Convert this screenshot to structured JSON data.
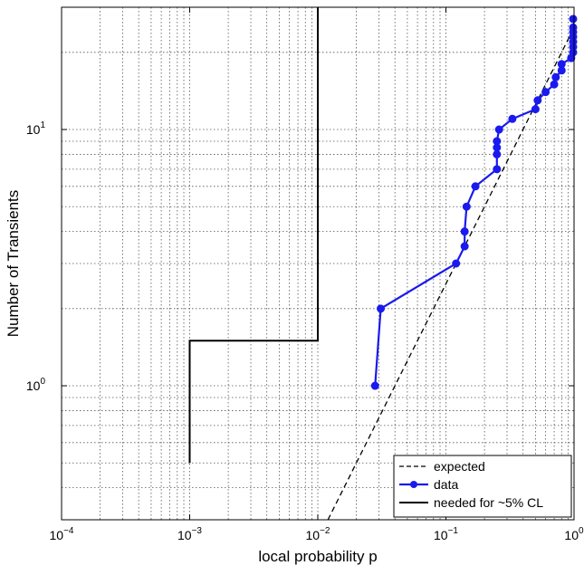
{
  "chart_data": {
    "type": "line",
    "title": "",
    "xlabel": "local probability p",
    "ylabel": "Number of Transients",
    "x_scale": "log",
    "y_scale": "log",
    "xlim": [
      0.0001,
      1
    ],
    "ylim": [
      0.3,
      30
    ],
    "grid": true,
    "legend_position": "bottom-right",
    "x_ticks": [
      {
        "value": 0.0001,
        "mantissa": "10",
        "exponent": "−4"
      },
      {
        "value": 0.001,
        "mantissa": "10",
        "exponent": "−3"
      },
      {
        "value": 0.01,
        "mantissa": "10",
        "exponent": "−2"
      },
      {
        "value": 0.1,
        "mantissa": "10",
        "exponent": "−1"
      },
      {
        "value": 1,
        "mantissa": "10",
        "exponent": "0"
      }
    ],
    "y_ticks": [
      {
        "value": 1,
        "mantissa": "10",
        "exponent": "0"
      },
      {
        "value": 10,
        "mantissa": "10",
        "exponent": "1"
      }
    ],
    "series": [
      {
        "name": "expected",
        "style": "dashed",
        "color": "#000000",
        "x": [
          0.012,
          1
        ],
        "y": [
          0.3,
          25
        ]
      },
      {
        "name": "data",
        "style": "solid-markers",
        "color": "#1a1aee",
        "x": [
          0.028,
          0.031,
          0.12,
          0.14,
          0.14,
          0.145,
          0.17,
          0.25,
          0.25,
          0.25,
          0.25,
          0.26,
          0.33,
          0.5,
          0.52,
          0.6,
          0.7,
          0.72,
          0.8,
          0.8,
          0.95,
          1,
          1,
          1,
          1,
          1,
          1,
          1
        ],
        "y": [
          1,
          2,
          3,
          3.5,
          4,
          5,
          6,
          7,
          8,
          8.5,
          9,
          10,
          11,
          12,
          13,
          14,
          15,
          16,
          17,
          18,
          19,
          20,
          21,
          22,
          23,
          24,
          25,
          27
        ]
      },
      {
        "name": "needed for ~5% CL",
        "style": "solid",
        "color": "#000000",
        "x": [
          0.001,
          0.001,
          0.01,
          0.01
        ],
        "y": [
          0.5,
          1.5,
          1.5,
          30
        ]
      }
    ]
  }
}
